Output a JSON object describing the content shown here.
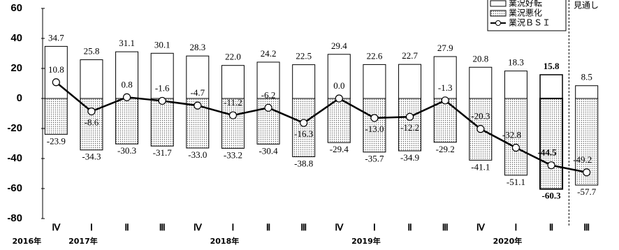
{
  "chart_data": {
    "type": "bar_line",
    "categories": [
      "Ⅳ",
      "Ⅰ",
      "Ⅱ",
      "Ⅲ",
      "Ⅳ",
      "Ⅰ",
      "Ⅱ",
      "Ⅲ",
      "Ⅳ",
      "Ⅰ",
      "Ⅱ",
      "Ⅲ",
      "Ⅳ",
      "Ⅰ",
      "Ⅱ",
      "Ⅲ"
    ],
    "years": [
      "2016年",
      "2017年",
      null,
      null,
      null,
      "2018年",
      null,
      null,
      null,
      "2019年",
      null,
      null,
      null,
      "2020年",
      null,
      null
    ],
    "note": "見通し",
    "series": [
      {
        "name": "業況好転",
        "color": "#ffffff",
        "values": [
          34.7,
          25.8,
          31.1,
          30.1,
          28.3,
          22.0,
          24.2,
          22.5,
          29.4,
          22.6,
          22.7,
          27.9,
          20.8,
          18.3,
          15.8,
          8.5
        ],
        "value_labels": [
          "34.7",
          "25.8",
          "31.1",
          "30.1",
          "28.3",
          "22.0",
          "24.2",
          "22.5",
          "29.4",
          "22.6",
          "22.7",
          "27.9",
          "20.8",
          "18.3",
          "15.8",
          "8.5"
        ]
      },
      {
        "name": "業況悪化",
        "color": "#999999",
        "values": [
          -23.9,
          -34.3,
          -30.3,
          -31.7,
          -33.0,
          -33.2,
          -30.4,
          -38.8,
          -29.4,
          -35.7,
          -34.9,
          -29.2,
          -41.1,
          -51.1,
          -60.3,
          -57.7
        ],
        "value_labels": [
          "-23.9",
          "-34.3",
          "-30.3",
          "-31.7",
          "-33.0",
          "-33.2",
          "-30.4",
          "-38.8",
          "-29.4",
          "-35.7",
          "-34.9",
          "-29.2",
          "-41.1",
          "-51.1",
          "-60.3",
          "-57.7"
        ]
      },
      {
        "name": "業況ＢＳＩ",
        "color": "#000000",
        "values": [
          10.8,
          -8.6,
          0.8,
          -1.6,
          -4.7,
          -11.2,
          -6.2,
          -16.3,
          0.0,
          -13.0,
          -12.2,
          -1.3,
          -20.3,
          -32.8,
          -44.5,
          -49.2
        ],
        "value_labels": [
          "10.8",
          "-8.6",
          "0.8",
          "-1.6",
          "-4.7",
          "-11.2",
          "-6.2",
          "-16.3",
          "0.0",
          "-13.0",
          "-12.2",
          "-1.3",
          "-20.3",
          "-32.8",
          "-44.5",
          "-49.2"
        ]
      }
    ],
    "ylim": [
      -80,
      60
    ],
    "yticks": [
      -80,
      -60,
      -40,
      -20,
      0,
      20,
      40,
      60
    ]
  }
}
